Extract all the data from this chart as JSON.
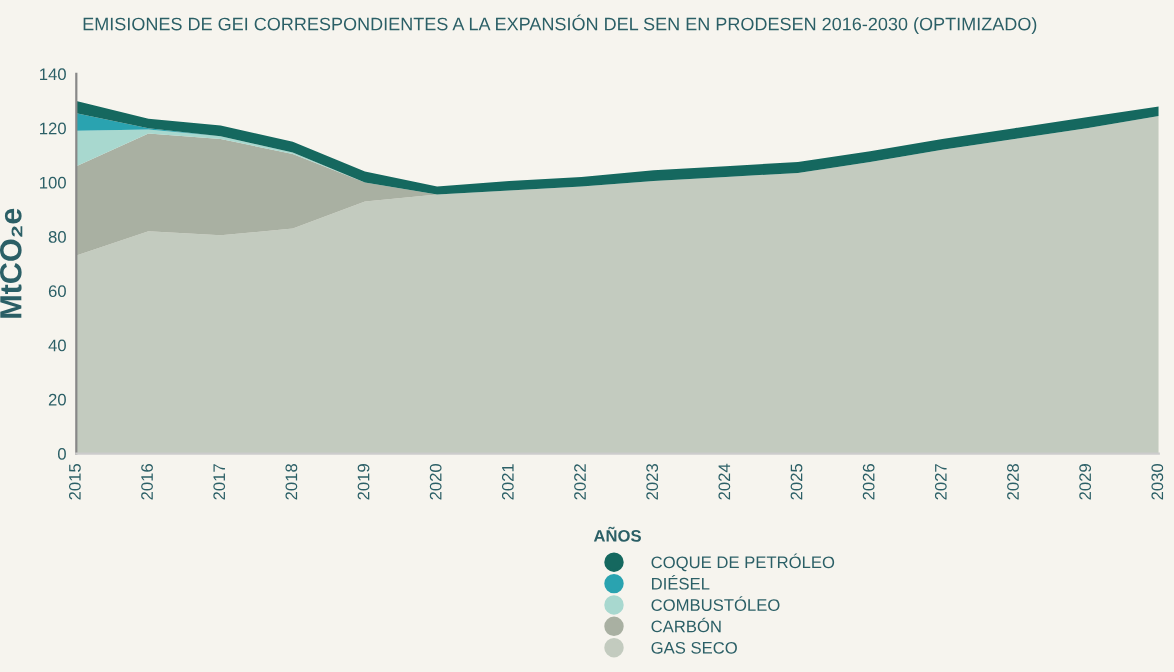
{
  "chart_data": {
    "type": "area",
    "stacked": true,
    "title": "EMISIONES DE GEI CORRESPONDIENTES A LA EXPANSIÓN DEL SEN EN PRODESEN 2016-2030 (OPTIMIZADO)",
    "xlabel": "AÑOS",
    "ylabel": "MtCO₂e",
    "x": [
      2015,
      2016,
      2017,
      2018,
      2019,
      2020,
      2021,
      2022,
      2023,
      2024,
      2025,
      2026,
      2027,
      2028,
      2029,
      2030
    ],
    "xlim": [
      2015,
      2030
    ],
    "xticks": [
      2015,
      2016,
      2017,
      2018,
      2019,
      2020,
      2021,
      2022,
      2023,
      2024,
      2025,
      2026,
      2027,
      2028,
      2029,
      2030
    ],
    "ylim": [
      0,
      140
    ],
    "yticks": [
      0,
      20,
      40,
      60,
      80,
      100,
      120,
      140
    ],
    "grid": false,
    "legend": "bottom",
    "series": [
      {
        "name": "GAS SECO",
        "color": "#c3cbbf",
        "values": [
          73,
          82,
          80.5,
          83,
          93,
          95.5,
          97,
          98.5,
          100.5,
          102,
          103.5,
          107.5,
          112,
          116,
          120,
          124.5
        ]
      },
      {
        "name": "CARBÓN",
        "color": "#a9b0a2",
        "values": [
          33,
          36,
          35.5,
          27.5,
          7,
          0,
          0,
          0,
          0,
          0,
          0,
          0,
          0,
          0,
          0,
          0
        ]
      },
      {
        "name": "COMBUSTÓLEO",
        "color": "#a8d8cf",
        "values": [
          13,
          1.5,
          1,
          0.5,
          0,
          0,
          0,
          0,
          0,
          0,
          0,
          0,
          0,
          0,
          0,
          0
        ]
      },
      {
        "name": "DIÉSEL",
        "color": "#2aa3b0",
        "values": [
          6.5,
          0.5,
          0,
          0,
          0,
          0,
          0,
          0,
          0,
          0,
          0,
          0,
          0,
          0,
          0,
          0
        ]
      },
      {
        "name": "COQUE DE PETRÓLEO",
        "color": "#15685f",
        "values": [
          4.5,
          3.5,
          4,
          4,
          4,
          3,
          3.5,
          3.5,
          4,
          4,
          4,
          4,
          4,
          4,
          4,
          3.5
        ]
      }
    ]
  }
}
